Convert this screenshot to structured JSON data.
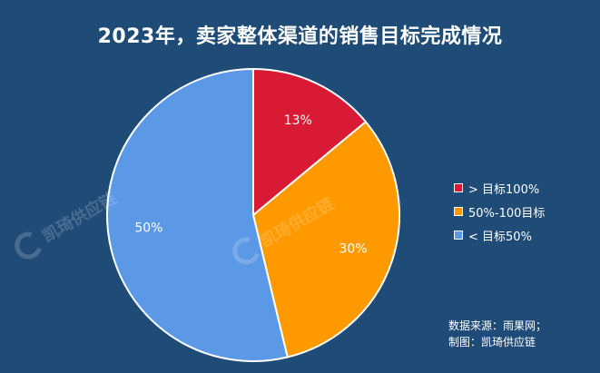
{
  "chart_data": {
    "type": "pie",
    "title": "2023年，卖家整体渠道的销售目标完成情况",
    "slices": [
      {
        "label": "> 目标100%",
        "value": 13,
        "value_label": "13%",
        "color": "#d91a35"
      },
      {
        "label": "50%-100目标",
        "value": 30,
        "value_label": "30%",
        "color": "#ff9900"
      },
      {
        "label": "< 目标50%",
        "value": 50,
        "value_label": "50%",
        "color": "#5b98e6"
      }
    ],
    "legend_position": "right",
    "start_angle": "12 o'clock, clockwise"
  },
  "source": {
    "line1": "数据来源：雨果网；",
    "line2": "制图：凯琦供应链"
  },
  "watermark": {
    "text": "凯琦供应链"
  },
  "colors": {
    "background": "#1f4b77",
    "slice_border": "#ffffff"
  }
}
